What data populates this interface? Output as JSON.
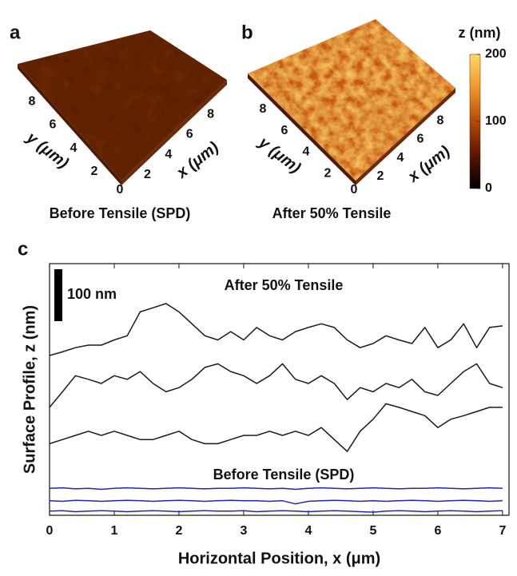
{
  "panels": [
    {
      "label": "a",
      "caption": "Before Tensile (SPD)",
      "caption_color": "#2424b8",
      "x_axis_label": "x (μm)",
      "y_axis_label": "y (μm)",
      "origin_tick": 0,
      "x_ticks": [
        2,
        4,
        6,
        8
      ],
      "y_ticks": [
        2,
        4,
        6,
        8
      ],
      "rough": false
    },
    {
      "label": "b",
      "caption": "After 50% Tensile",
      "caption_color": "#111111",
      "x_axis_label": "x (μm)",
      "y_axis_label": "y (μm)",
      "origin_tick": 0,
      "x_ticks": [
        2,
        4,
        6,
        8
      ],
      "y_ticks": [
        2,
        4,
        6,
        8
      ],
      "rough": true
    }
  ],
  "colorbar": {
    "title": "z (nm)",
    "lim": [
      0,
      200
    ],
    "ticks": [
      0,
      100,
      200
    ],
    "colors": [
      "#000000",
      "#5a1400",
      "#b34a08",
      "#f0962a",
      "#ffd86a"
    ]
  },
  "chart_data": {
    "type": "line",
    "label": "c",
    "xlabel": "Horizontal Position, x  (μm)",
    "ylabel": "Surface Profile, z (nm)",
    "x": [
      0,
      0.2,
      0.4,
      0.6,
      0.8,
      1.0,
      1.2,
      1.4,
      1.6,
      1.8,
      2.0,
      2.2,
      2.4,
      2.6,
      2.8,
      3.0,
      3.2,
      3.4,
      3.6,
      3.8,
      4.0,
      4.2,
      4.4,
      4.6,
      4.8,
      5.0,
      5.2,
      5.4,
      5.6,
      5.8,
      6.0,
      6.2,
      6.4,
      6.6,
      6.8,
      7.0
    ],
    "xlim": [
      0,
      7.1
    ],
    "xticks": [
      0,
      1,
      2,
      3,
      4,
      5,
      6,
      7
    ],
    "ylim": [
      0,
      485
    ],
    "grid": false,
    "scale_bar": {
      "value": 100,
      "label": "100 nm"
    },
    "annotations": [
      {
        "text": "After 50% Tensile",
        "color": "#111111"
      },
      {
        "text": "Before Tensile (SPD)",
        "color": "#2424b8"
      }
    ],
    "series": [
      {
        "color": "#1a1a1a",
        "values": [
          308,
          315,
          323,
          328,
          328,
          338,
          346,
          392,
          400,
          408,
          392,
          369,
          346,
          338,
          354,
          338,
          362,
          346,
          338,
          354,
          362,
          369,
          362,
          338,
          323,
          331,
          346,
          338,
          331,
          362,
          323,
          338,
          369,
          323,
          362,
          365
        ]
      },
      {
        "color": "#1a1a1a",
        "values": [
          208,
          238,
          269,
          262,
          254,
          269,
          262,
          277,
          254,
          238,
          246,
          262,
          285,
          292,
          277,
          269,
          254,
          269,
          292,
          262,
          254,
          269,
          254,
          223,
          246,
          238,
          254,
          246,
          262,
          238,
          231,
          254,
          277,
          292,
          254,
          246
        ]
      },
      {
        "color": "#1a1a1a",
        "values": [
          138,
          146,
          154,
          162,
          154,
          162,
          154,
          146,
          146,
          154,
          162,
          146,
          138,
          138,
          146,
          154,
          154,
          162,
          154,
          162,
          154,
          169,
          146,
          123,
          162,
          185,
          215,
          208,
          200,
          192,
          169,
          185,
          192,
          200,
          208,
          208
        ]
      },
      {
        "color": "#2424b8",
        "values": [
          52,
          53,
          51,
          52,
          50,
          52,
          53,
          52,
          51,
          52,
          53,
          52,
          51,
          52,
          52,
          53,
          52,
          51,
          52,
          50,
          52,
          53,
          52,
          51,
          52,
          53,
          52,
          51,
          52,
          52,
          53,
          52,
          51,
          52,
          53,
          52
        ]
      },
      {
        "color": "#2424b8",
        "values": [
          28,
          27,
          29,
          28,
          27,
          28,
          29,
          28,
          27,
          28,
          29,
          28,
          27,
          28,
          29,
          28,
          28,
          27,
          28,
          22,
          27,
          28,
          29,
          28,
          27,
          28,
          27,
          28,
          29,
          28,
          27,
          28,
          29,
          28,
          27,
          28
        ]
      },
      {
        "color": "#2424b8",
        "values": [
          8,
          9,
          7,
          8,
          9,
          8,
          7,
          8,
          9,
          8,
          7,
          8,
          9,
          8,
          8,
          9,
          7,
          8,
          9,
          8,
          7,
          8,
          9,
          8,
          7,
          6,
          8,
          9,
          8,
          7,
          8,
          9,
          8,
          7,
          8,
          9
        ]
      }
    ]
  }
}
